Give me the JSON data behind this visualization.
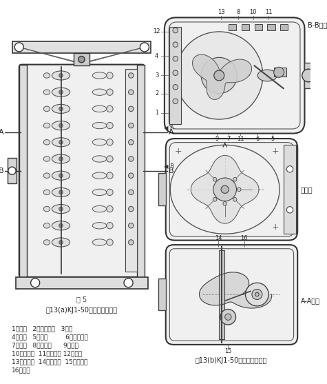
{
  "title_a": "图13(a)KJ1-50型控制器概览图",
  "title_b": "图13(b)KJ1-50型控制器概览图",
  "label_BB": "B-B剖视",
  "label_side": "侧视图",
  "label_AA": "A-A剖视",
  "legend_lines": [
    "1、机壳   2、凸轮元件   3、轴",
    "4、凸轮   5、角铁         6、绝缘支架",
    "7、杠杆   8、动触头      9、滚子",
    "10、静触头  11、接线头 12、小轴",
    "13、隔弧室  14、定位轮  15、定位器",
    "16、弹簧"
  ],
  "bg_color": "#ffffff",
  "line_color": "#555555",
  "dark_color": "#333333"
}
